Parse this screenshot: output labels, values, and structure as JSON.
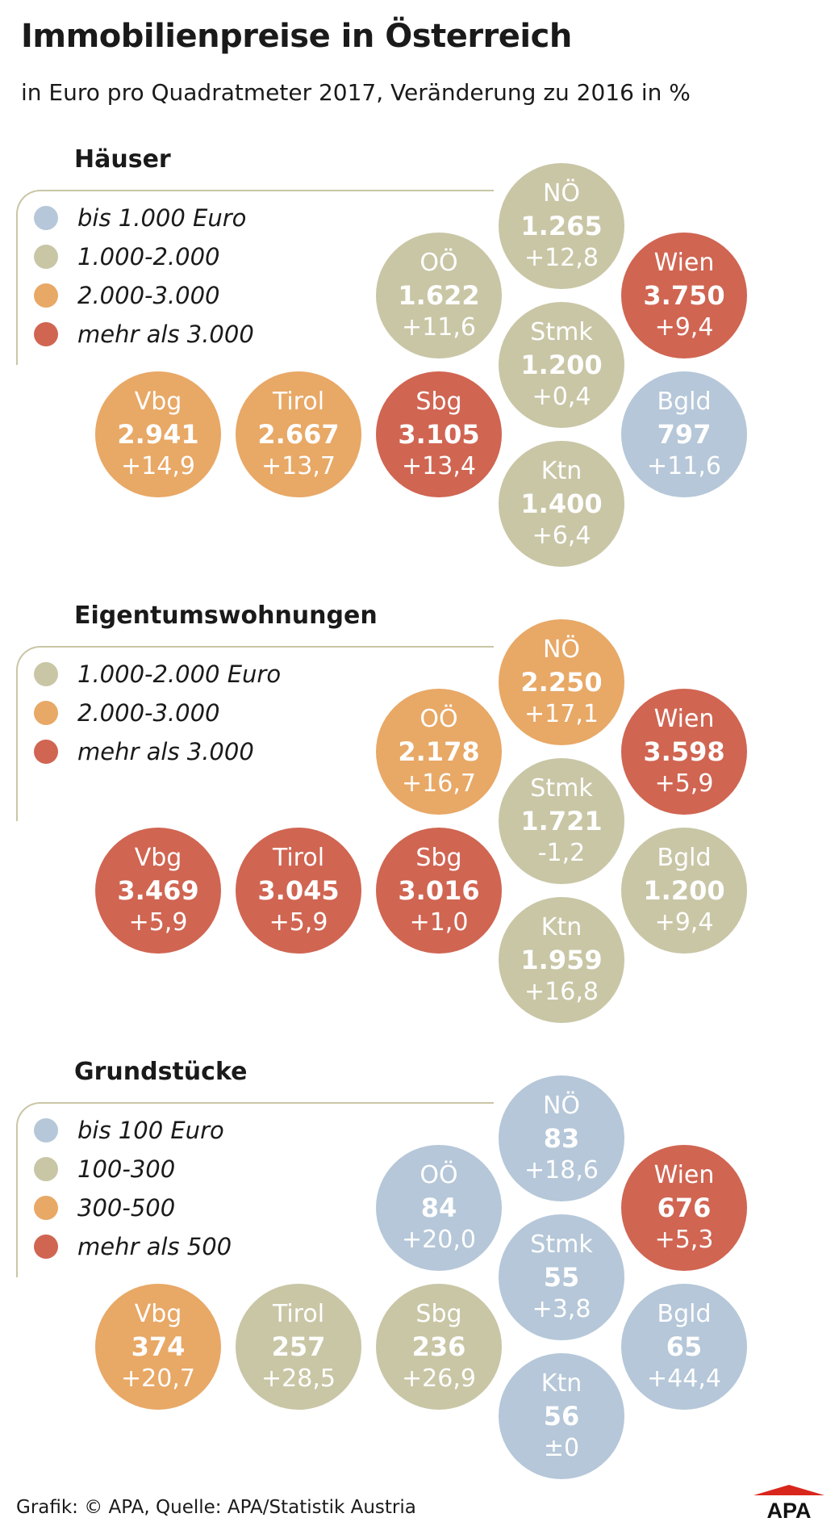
{
  "title": "Immobilienpreise in Österreich",
  "subtitle": "in Euro pro Quadratmeter 2017, Veränderung zu 2016 in %",
  "colors": {
    "blue": "#b5c7d8",
    "beige": "#c9c6a6",
    "orange": "#e8a866",
    "red": "#d06552"
  },
  "chart_data": [
    {
      "type": "bubble-map",
      "title": "Häuser",
      "legend": [
        {
          "label": "bis 1.000 Euro",
          "color": "#b5c7d8"
        },
        {
          "label": "1.000-2.000",
          "color": "#c9c6a6"
        },
        {
          "label": "2.000-3.000",
          "color": "#e8a866"
        },
        {
          "label": "mehr als 3.000",
          "color": "#d06552"
        }
      ],
      "regions": [
        {
          "name": "NÖ",
          "price": "1.265",
          "change": "+12,8",
          "value": 1265,
          "change_pct": 12.8
        },
        {
          "name": "OÖ",
          "price": "1.622",
          "change": "+11,6",
          "value": 1622,
          "change_pct": 11.6
        },
        {
          "name": "Wien",
          "price": "3.750",
          "change": "+9,4",
          "value": 3750,
          "change_pct": 9.4
        },
        {
          "name": "Stmk",
          "price": "1.200",
          "change": "+0,4",
          "value": 1200,
          "change_pct": 0.4
        },
        {
          "name": "Vbg",
          "price": "2.941",
          "change": "+14,9",
          "value": 2941,
          "change_pct": 14.9
        },
        {
          "name": "Tirol",
          "price": "2.667",
          "change": "+13,7",
          "value": 2667,
          "change_pct": 13.7
        },
        {
          "name": "Sbg",
          "price": "3.105",
          "change": "+13,4",
          "value": 3105,
          "change_pct": 13.4
        },
        {
          "name": "Bgld",
          "price": "797",
          "change": "+11,6",
          "value": 797,
          "change_pct": 11.6
        },
        {
          "name": "Ktn",
          "price": "1.400",
          "change": "+6,4",
          "value": 1400,
          "change_pct": 6.4
        }
      ]
    },
    {
      "type": "bubble-map",
      "title": "Eigentumswohnungen",
      "legend": [
        {
          "label": "1.000-2.000 Euro",
          "color": "#c9c6a6"
        },
        {
          "label": "2.000-3.000",
          "color": "#e8a866"
        },
        {
          "label": "mehr als 3.000",
          "color": "#d06552"
        }
      ],
      "regions": [
        {
          "name": "NÖ",
          "price": "2.250",
          "change": "+17,1",
          "value": 2250,
          "change_pct": 17.1
        },
        {
          "name": "OÖ",
          "price": "2.178",
          "change": "+16,7",
          "value": 2178,
          "change_pct": 16.7
        },
        {
          "name": "Wien",
          "price": "3.598",
          "change": "+5,9",
          "value": 3598,
          "change_pct": 5.9
        },
        {
          "name": "Stmk",
          "price": "1.721",
          "change": "-1,2",
          "value": 1721,
          "change_pct": -1.2
        },
        {
          "name": "Vbg",
          "price": "3.469",
          "change": "+5,9",
          "value": 3469,
          "change_pct": 5.9
        },
        {
          "name": "Tirol",
          "price": "3.045",
          "change": "+5,9",
          "value": 3045,
          "change_pct": 5.9
        },
        {
          "name": "Sbg",
          "price": "3.016",
          "change": "+1,0",
          "value": 3016,
          "change_pct": 1.0
        },
        {
          "name": "Bgld",
          "price": "1.200",
          "change": "+9,4",
          "value": 1200,
          "change_pct": 9.4
        },
        {
          "name": "Ktn",
          "price": "1.959",
          "change": "+16,8",
          "value": 1959,
          "change_pct": 16.8
        }
      ]
    },
    {
      "type": "bubble-map",
      "title": "Grundstücke",
      "legend": [
        {
          "label": "bis 100 Euro",
          "color": "#b5c7d8"
        },
        {
          "label": "100-300",
          "color": "#c9c6a6"
        },
        {
          "label": "300-500",
          "color": "#e8a866"
        },
        {
          "label": "mehr als 500",
          "color": "#d06552"
        }
      ],
      "regions": [
        {
          "name": "NÖ",
          "price": "83",
          "change": "+18,6",
          "value": 83,
          "change_pct": 18.6
        },
        {
          "name": "OÖ",
          "price": "84",
          "change": "+20,0",
          "value": 84,
          "change_pct": 20.0
        },
        {
          "name": "Wien",
          "price": "676",
          "change": "+5,3",
          "value": 676,
          "change_pct": 5.3
        },
        {
          "name": "Stmk",
          "price": "55",
          "change": "+3,8",
          "value": 55,
          "change_pct": 3.8
        },
        {
          "name": "Vbg",
          "price": "374",
          "change": "+20,7",
          "value": 374,
          "change_pct": 20.7
        },
        {
          "name": "Tirol",
          "price": "257",
          "change": "+28,5",
          "value": 257,
          "change_pct": 28.5
        },
        {
          "name": "Sbg",
          "price": "236",
          "change": "+26,9",
          "value": 236,
          "change_pct": 26.9
        },
        {
          "name": "Bgld",
          "price": "65",
          "change": "+44,4",
          "value": 65,
          "change_pct": 44.4
        },
        {
          "name": "Ktn",
          "price": "56",
          "change": "±0",
          "value": 56,
          "change_pct": 0
        }
      ]
    }
  ],
  "footer": {
    "source": "Grafik: © APA, Quelle: APA/Statistik Austria",
    "logo": "APA"
  }
}
